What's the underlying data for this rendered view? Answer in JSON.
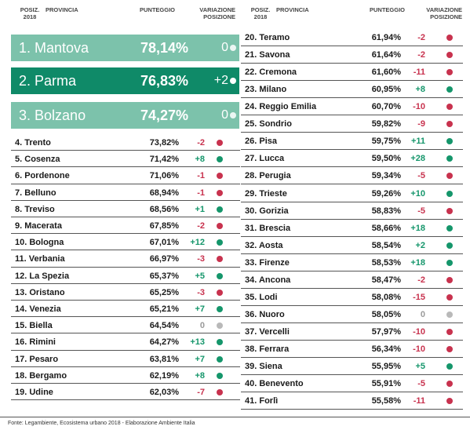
{
  "headers": {
    "pos": "POSIZ. 2018",
    "pos_line1": "POSIZ.",
    "pos_line2": "2018",
    "province": "PROVINCIA",
    "score": "PUNTEGGIO",
    "var_line1": "VARIAZIONE",
    "var_line2": "POSIZIONE"
  },
  "colors": {
    "top1": "#7cc2ab",
    "top2": "#0f8a68",
    "top3": "#7cc2ab",
    "up": "#15966b",
    "down": "#c8324e",
    "same": "#9a9a9a"
  },
  "chart_data": {
    "type": "table",
    "columns": [
      "POSIZ. 2018",
      "PROVINCIA",
      "PUNTEGGIO",
      "VARIAZIONE POSIZIONE"
    ],
    "rows": [
      {
        "pos": "1.",
        "name": "Mantova",
        "score": "78,14%",
        "change": "0",
        "dir": "eq"
      },
      {
        "pos": "2.",
        "name": "Parma",
        "score": "76,83%",
        "change": "+2",
        "dir": "up"
      },
      {
        "pos": "3.",
        "name": "Bolzano",
        "score": "74,27%",
        "change": "0",
        "dir": "eq"
      },
      {
        "pos": "4.",
        "name": "Trento",
        "score": "73,82%",
        "change": "-2",
        "dir": "dn"
      },
      {
        "pos": "5.",
        "name": "Cosenza",
        "score": "71,42%",
        "change": "+8",
        "dir": "up"
      },
      {
        "pos": "6.",
        "name": "Pordenone",
        "score": "71,06%",
        "change": "-1",
        "dir": "dn"
      },
      {
        "pos": "7.",
        "name": "Belluno",
        "score": "68,94%",
        "change": "-1",
        "dir": "dn"
      },
      {
        "pos": "8.",
        "name": "Treviso",
        "score": "68,56%",
        "change": "+1",
        "dir": "up"
      },
      {
        "pos": "9.",
        "name": "Macerata",
        "score": "67,85%",
        "change": "-2",
        "dir": "dn"
      },
      {
        "pos": "10.",
        "name": "Bologna",
        "score": "67,01%",
        "change": "+12",
        "dir": "up"
      },
      {
        "pos": "11.",
        "name": "Verbania",
        "score": "66,97%",
        "change": "-3",
        "dir": "dn"
      },
      {
        "pos": "12.",
        "name": "La Spezia",
        "score": "65,37%",
        "change": "+5",
        "dir": "up"
      },
      {
        "pos": "13.",
        "name": "Oristano",
        "score": "65,25%",
        "change": "-3",
        "dir": "dn"
      },
      {
        "pos": "14.",
        "name": "Venezia",
        "score": "65,21%",
        "change": "+7",
        "dir": "up"
      },
      {
        "pos": "15.",
        "name": "Biella",
        "score": "64,54%",
        "change": "0",
        "dir": "eq"
      },
      {
        "pos": "16.",
        "name": "Rimini",
        "score": "64,27%",
        "change": "+13",
        "dir": "up"
      },
      {
        "pos": "17.",
        "name": "Pesaro",
        "score": "63,81%",
        "change": "+7",
        "dir": "up"
      },
      {
        "pos": "18.",
        "name": "Bergamo",
        "score": "62,19%",
        "change": "+8",
        "dir": "up"
      },
      {
        "pos": "19.",
        "name": "Udine",
        "score": "62,03%",
        "change": "-7",
        "dir": "dn"
      },
      {
        "pos": "20.",
        "name": "Teramo",
        "score": "61,94%",
        "change": "-2",
        "dir": "dn"
      },
      {
        "pos": "21.",
        "name": "Savona",
        "score": "61,64%",
        "change": "-2",
        "dir": "dn"
      },
      {
        "pos": "22.",
        "name": "Cremona",
        "score": "61,60%",
        "change": "-11",
        "dir": "dn"
      },
      {
        "pos": "23.",
        "name": "Milano",
        "score": "60,95%",
        "change": "+8",
        "dir": "up"
      },
      {
        "pos": "24.",
        "name": "Reggio Emilia",
        "score": "60,70%",
        "change": "-10",
        "dir": "dn"
      },
      {
        "pos": "25.",
        "name": "Sondrio",
        "score": "59,82%",
        "change": "-9",
        "dir": "dn"
      },
      {
        "pos": "26.",
        "name": "Pisa",
        "score": "59,75%",
        "change": "+11",
        "dir": "up"
      },
      {
        "pos": "27.",
        "name": "Lucca",
        "score": "59,50%",
        "change": "+28",
        "dir": "up"
      },
      {
        "pos": "28.",
        "name": "Perugia",
        "score": "59,34%",
        "change": "-5",
        "dir": "dn"
      },
      {
        "pos": "29.",
        "name": "Trieste",
        "score": "59,26%",
        "change": "+10",
        "dir": "up"
      },
      {
        "pos": "30.",
        "name": "Gorizia",
        "score": "58,83%",
        "change": "-5",
        "dir": "dn"
      },
      {
        "pos": "31.",
        "name": "Brescia",
        "score": "58,66%",
        "change": "+18",
        "dir": "up"
      },
      {
        "pos": "32.",
        "name": "Aosta",
        "score": "58,54%",
        "change": "+2",
        "dir": "up"
      },
      {
        "pos": "33.",
        "name": "Firenze",
        "score": "58,53%",
        "change": "+18",
        "dir": "up"
      },
      {
        "pos": "34.",
        "name": "Ancona",
        "score": "58,47%",
        "change": "-2",
        "dir": "dn"
      },
      {
        "pos": "35.",
        "name": "Lodi",
        "score": "58,08%",
        "change": "-15",
        "dir": "dn"
      },
      {
        "pos": "36.",
        "name": "Nuoro",
        "score": "58,05%",
        "change": "0",
        "dir": "eq"
      },
      {
        "pos": "37.",
        "name": "Vercelli",
        "score": "57,97%",
        "change": "-10",
        "dir": "dn"
      },
      {
        "pos": "38.",
        "name": "Ferrara",
        "score": "56,34%",
        "change": "-10",
        "dir": "dn"
      },
      {
        "pos": "39.",
        "name": "Siena",
        "score": "55,95%",
        "change": "+5",
        "dir": "up"
      },
      {
        "pos": "40.",
        "name": "Benevento",
        "score": "55,91%",
        "change": "-5",
        "dir": "dn"
      },
      {
        "pos": "41.",
        "name": "Forlì",
        "score": "55,58%",
        "change": "-11",
        "dir": "dn"
      }
    ]
  },
  "source": "Fonte: Legambiente, Ecosistema urbano 2018 - Elaborazione Ambiente Italia"
}
